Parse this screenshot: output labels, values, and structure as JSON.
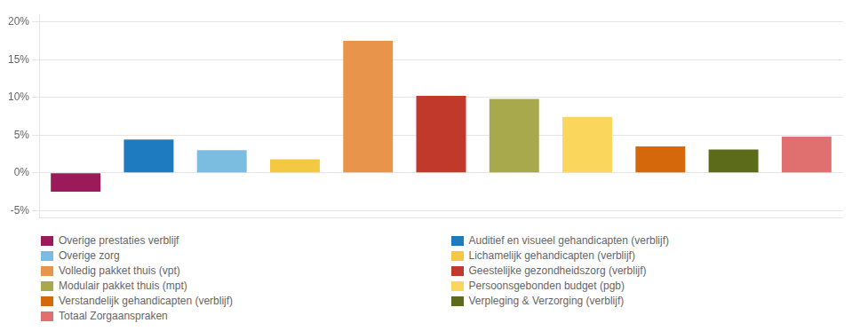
{
  "chart_data": {
    "type": "bar",
    "categories": [
      "Overige prestaties verblijf",
      "Auditief en visueel gehandicapten (verblijf)",
      "Overige zorg",
      "Lichamelijk gehandicapten (verblijf)",
      "Volledig pakket thuis (vpt)",
      "Geestelijke gezondheidszorg (verblijf)",
      "Modulair pakket thuis (mpt)",
      "Persoonsgebonden budget (pgb)",
      "Verstandelijk gehandicapten (verblijf)",
      "Verpleging & Verzorging (verblijf)",
      "Totaal Zorgaanspraken"
    ],
    "values": [
      -2.5,
      4.4,
      3.0,
      1.8,
      17.5,
      10.2,
      9.8,
      7.4,
      3.5,
      3.1,
      4.8
    ],
    "colors": [
      "#9B1B5A",
      "#1F7BBF",
      "#7BBDE0",
      "#F5C842",
      "#E8954B",
      "#C0392B",
      "#A8A84C",
      "#FAD65C",
      "#D4680A",
      "#5B6B1A",
      "#E07070"
    ],
    "ylim": [
      -6,
      21
    ],
    "yticks": [
      {
        "value": -5,
        "label": "-5%"
      },
      {
        "value": 0,
        "label": "0%"
      },
      {
        "value": 5,
        "label": "5%"
      },
      {
        "value": 10,
        "label": "10%"
      },
      {
        "value": 15,
        "label": "15%"
      },
      {
        "value": 20,
        "label": "20%"
      }
    ],
    "grid": true,
    "legend": "bottom",
    "tick_labels": "y"
  }
}
